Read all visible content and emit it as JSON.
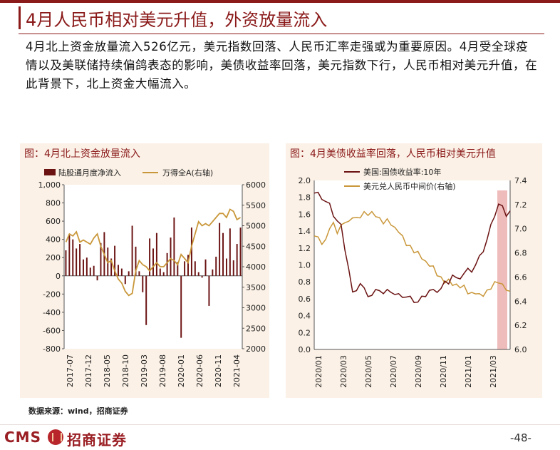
{
  "page": {
    "title": "4月人民币相对美元升值，外资放量流入",
    "intro": "4月北上资金放量流入526亿元，美元指数回落、人民币汇率走强或为重要原因。4月受全球疫情以及美联储持续偏鸽表态的影响，美债收益率回落，美元指数下行，人民币相对美元升值，在此背景下，北上资金大幅流入。",
    "source": "数据来源：wind，招商证券",
    "logo": "CMS",
    "logo_cn": "招商证券",
    "page_number": "-48-"
  },
  "colors": {
    "accent": "#8b1a1a",
    "bar": "#6b1212",
    "gold": "#c9973a",
    "panel_bg": "#fbf1e6",
    "highlight": "#e8a0a0"
  },
  "chart_data": [
    {
      "type": "bar",
      "title": "图：4月北上资金放量流入",
      "legend": [
        "陆股通月度净流入",
        "万得全A(右轴)"
      ],
      "legend_position": "top",
      "ylim": [
        -800,
        1000
      ],
      "yticks": [
        "1,000",
        "800",
        "600",
        "400",
        "200",
        "0",
        "-200",
        "-400",
        "-600",
        "-800"
      ],
      "ylim_right": [
        2000,
        6000
      ],
      "yticks_right": [
        "6000",
        "5500",
        "5000",
        "4500",
        "4000",
        "3500",
        "3000",
        "2500",
        "2000"
      ],
      "xticks": [
        "2017-07",
        "2017-12",
        "2018-05",
        "2018-10",
        "2019-03",
        "2019-08",
        "2020-01",
        "2020-06",
        "2020-11",
        "2021-04"
      ],
      "series": [
        {
          "name": "陆股通月度净流入",
          "type": "bar",
          "values": [
            280,
            460,
            400,
            300,
            350,
            180,
            200,
            90,
            110,
            -50,
            360,
            480,
            310,
            190,
            330,
            120,
            80,
            -90,
            50,
            550,
            320,
            50,
            -180,
            -540,
            410,
            300,
            470,
            80,
            40,
            250,
            420,
            640,
            150,
            -680,
            160,
            230,
            530,
            160,
            40,
            -20,
            180,
            -330,
            70,
            210,
            580,
            470,
            190,
            520,
            170,
            350,
            530
          ]
        },
        {
          "name": "万得全A(右轴)",
          "type": "line",
          "values": [
            4600,
            4800,
            4750,
            4850,
            4600,
            4650,
            4600,
            4550,
            4700,
            4800,
            4500,
            4300,
            4100,
            4150,
            3900,
            3700,
            3600,
            3400,
            3300,
            3350,
            3900,
            4150,
            4050,
            4000,
            3900,
            4000,
            4100,
            4000,
            4000,
            4100,
            4200,
            4150,
            4050,
            4300,
            4200,
            4100,
            4500,
            4800,
            5100,
            5000,
            5050,
            5000,
            5100,
            5200,
            5300,
            5300,
            5200,
            5400,
            5350,
            5150,
            5200
          ]
        }
      ]
    },
    {
      "type": "line",
      "title": "图：4月美债收益率回落，人民币相对美元升值",
      "legend": [
        "美国:国债收益率:10年",
        "美元兑人民币中间价(右轴)"
      ],
      "legend_position": "top",
      "ylim": [
        0,
        2
      ],
      "yticks": [
        "2.0",
        "1.8",
        "1.6",
        "1.4",
        "1.2",
        "1.0",
        "0.8",
        "0.6",
        "0.4",
        "0.2",
        "0.0"
      ],
      "ylim_right": [
        6,
        7.4
      ],
      "yticks_right": [
        "7.4",
        "7.2",
        "7.0",
        "6.8",
        "6.6",
        "6.4",
        "6.2",
        "6.0"
      ],
      "xticks": [
        "2020/01",
        "2020/03",
        "2020/05",
        "2020/07",
        "2020/09",
        "2020/11",
        "2021/01",
        "2021/03"
      ],
      "highlight": "2021/04",
      "series": [
        {
          "name": "美国:国债收益率:10年",
          "values": [
            1.85,
            1.83,
            1.8,
            1.75,
            1.7,
            1.6,
            1.52,
            1.45,
            1.2,
            0.95,
            0.65,
            0.72,
            0.78,
            0.7,
            0.65,
            0.64,
            0.68,
            0.72,
            0.66,
            0.68,
            0.7,
            0.65,
            0.63,
            0.64,
            0.62,
            0.6,
            0.58,
            0.56,
            0.6,
            0.65,
            0.7,
            0.68,
            0.7,
            0.72,
            0.78,
            0.8,
            0.88,
            0.82,
            0.86,
            0.9,
            0.93,
            0.94,
            1.0,
            1.08,
            1.18,
            1.3,
            1.45,
            1.6,
            1.72,
            1.67,
            1.6,
            1.64
          ]
        },
        {
          "name": "美元兑人民币中间价(右轴)",
          "values": [
            6.95,
            6.92,
            6.88,
            6.9,
            7.01,
            7.04,
            6.97,
            7.02,
            7.06,
            7.05,
            7.1,
            7.08,
            7.1,
            7.13,
            7.12,
            7.13,
            7.11,
            7.08,
            7.05,
            7.07,
            7.04,
            7.0,
            6.98,
            6.93,
            6.87,
            6.85,
            6.81,
            6.8,
            6.76,
            6.72,
            6.7,
            6.68,
            6.62,
            6.59,
            6.56,
            6.57,
            6.54,
            6.53,
            6.52,
            6.52,
            6.47,
            6.46,
            6.47,
            6.45,
            6.45,
            6.48,
            6.51,
            6.55,
            6.56,
            6.53,
            6.5,
            6.47
          ]
        }
      ]
    }
  ]
}
